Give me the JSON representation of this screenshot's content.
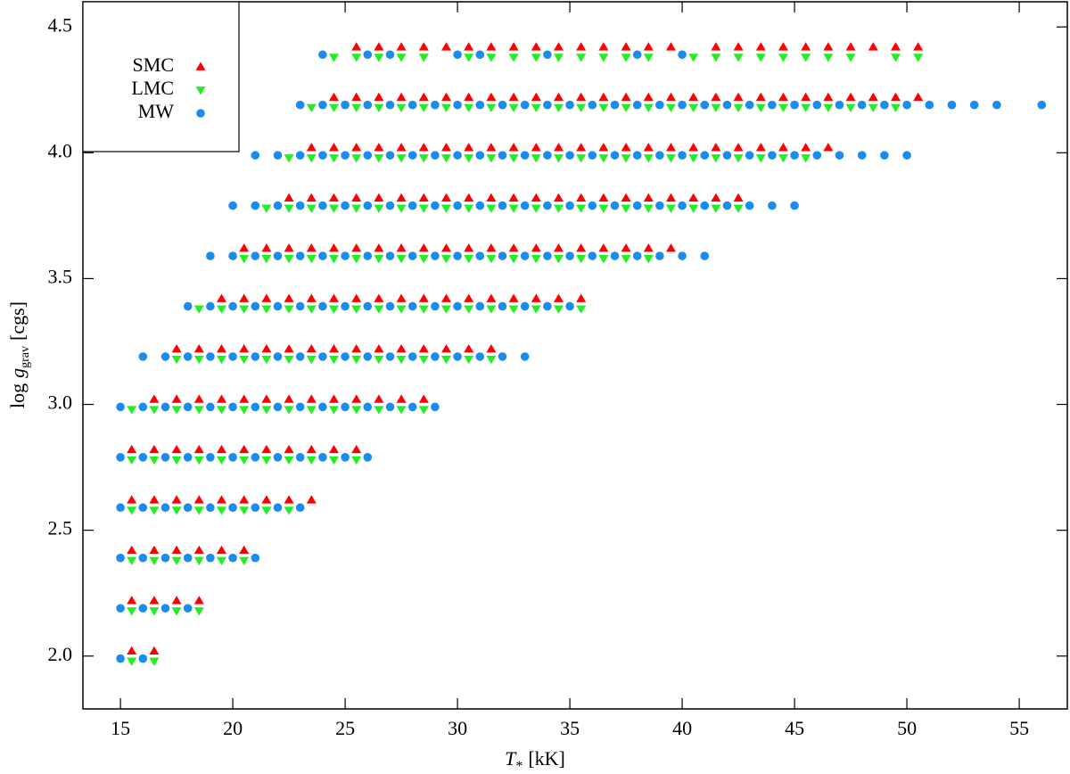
{
  "chart_data": {
    "type": "scatter",
    "x_label": {
      "symbol": "T",
      "subscript": "*",
      "unit": "[kK]"
    },
    "y_label": {
      "prefix": "log",
      "symbol": "g",
      "subscript": "grav",
      "unit": "[cgs]"
    },
    "xlim": [
      13.33,
      57.14
    ],
    "ylim": [
      1.79,
      4.6
    ],
    "xticks": [
      15,
      20,
      25,
      30,
      35,
      40,
      45,
      50,
      55
    ],
    "yticks": [
      {
        "value": 2,
        "label": "2.0"
      },
      2.5,
      {
        "value": 3,
        "label": "3.0"
      },
      3.5,
      {
        "value": 4,
        "label": "4.0"
      },
      4.5
    ],
    "legend": "upper left",
    "series": [
      {
        "name": "SMC",
        "color": "#ff0000",
        "marker": "triangle-up",
        "x": [
          15.5,
          16.5,
          15.5,
          16.5,
          17.5,
          18.5,
          15.5,
          16.5,
          17.5,
          18.5,
          19.5,
          20.5,
          15.5,
          16.5,
          17.5,
          18.5,
          19.5,
          20.5,
          21.5,
          22.5,
          23.5,
          15.5,
          16.5,
          17.5,
          18.5,
          19.5,
          20.5,
          21.5,
          22.5,
          23.5,
          24.5,
          25.5,
          16.5,
          17.5,
          18.5,
          19.5,
          20.5,
          21.5,
          22.5,
          23.5,
          24.5,
          25.5,
          26.5,
          27.5,
          28.5,
          17.5,
          18.5,
          19.5,
          20.5,
          21.5,
          22.5,
          23.5,
          24.5,
          25.5,
          26.5,
          27.5,
          28.5,
          29.5,
          30.5,
          31.5,
          19.5,
          20.5,
          21.5,
          22.5,
          23.5,
          24.5,
          25.5,
          26.5,
          27.5,
          28.5,
          29.5,
          30.5,
          31.5,
          32.5,
          33.5,
          34.5,
          35.5,
          20.5,
          21.5,
          22.5,
          23.5,
          24.5,
          25.5,
          26.5,
          27.5,
          28.5,
          29.5,
          30.5,
          31.5,
          32.5,
          33.5,
          34.5,
          35.5,
          36.5,
          37.5,
          38.5,
          39.5,
          22.5,
          23.5,
          24.5,
          25.5,
          26.5,
          27.5,
          28.5,
          29.5,
          30.5,
          31.5,
          32.5,
          33.5,
          34.5,
          35.5,
          36.5,
          37.5,
          38.5,
          39.5,
          40.5,
          41.5,
          42.5,
          23.5,
          24.5,
          25.5,
          26.5,
          27.5,
          28.5,
          29.5,
          30.5,
          31.5,
          32.5,
          33.5,
          34.5,
          35.5,
          36.5,
          37.5,
          38.5,
          39.5,
          40.5,
          41.5,
          42.5,
          43.5,
          44.5,
          45.5,
          46.5,
          24.5,
          25.5,
          26.5,
          27.5,
          28.5,
          29.5,
          30.5,
          31.5,
          32.5,
          33.5,
          34.5,
          35.5,
          36.5,
          37.5,
          38.5,
          39.5,
          40.5,
          41.5,
          42.5,
          43.5,
          44.5,
          45.5,
          46.5,
          47.5,
          48.5,
          49.5,
          50.5,
          25.5,
          26.5,
          27.5,
          28.5,
          29.5,
          30.5,
          31.5,
          32.5,
          33.5,
          34.5,
          35.5,
          36.5,
          37.5,
          38.5,
          39.5,
          41.5,
          42.5,
          43.5,
          44.5,
          45.5,
          46.5,
          47.5,
          48.5,
          49.5,
          50.5
        ],
        "values": [
          2.02,
          2.02,
          2.22,
          2.22,
          2.22,
          2.22,
          2.42,
          2.42,
          2.42,
          2.42,
          2.42,
          2.42,
          2.62,
          2.62,
          2.62,
          2.62,
          2.62,
          2.62,
          2.62,
          2.62,
          2.62,
          2.82,
          2.82,
          2.82,
          2.82,
          2.82,
          2.82,
          2.82,
          2.82,
          2.82,
          2.82,
          2.82,
          3.02,
          3.02,
          3.02,
          3.02,
          3.02,
          3.02,
          3.02,
          3.02,
          3.02,
          3.02,
          3.02,
          3.02,
          3.02,
          3.22,
          3.22,
          3.22,
          3.22,
          3.22,
          3.22,
          3.22,
          3.22,
          3.22,
          3.22,
          3.22,
          3.22,
          3.22,
          3.22,
          3.22,
          3.42,
          3.42,
          3.42,
          3.42,
          3.42,
          3.42,
          3.42,
          3.42,
          3.42,
          3.42,
          3.42,
          3.42,
          3.42,
          3.42,
          3.42,
          3.42,
          3.42,
          3.62,
          3.62,
          3.62,
          3.62,
          3.62,
          3.62,
          3.62,
          3.62,
          3.62,
          3.62,
          3.62,
          3.62,
          3.62,
          3.62,
          3.62,
          3.62,
          3.62,
          3.62,
          3.62,
          3.62,
          3.82,
          3.82,
          3.82,
          3.82,
          3.82,
          3.82,
          3.82,
          3.82,
          3.82,
          3.82,
          3.82,
          3.82,
          3.82,
          3.82,
          3.82,
          3.82,
          3.82,
          3.82,
          3.82,
          3.82,
          3.82,
          4.02,
          4.02,
          4.02,
          4.02,
          4.02,
          4.02,
          4.02,
          4.02,
          4.02,
          4.02,
          4.02,
          4.02,
          4.02,
          4.02,
          4.02,
          4.02,
          4.02,
          4.02,
          4.02,
          4.02,
          4.02,
          4.02,
          4.02,
          4.02,
          4.22,
          4.22,
          4.22,
          4.22,
          4.22,
          4.22,
          4.22,
          4.22,
          4.22,
          4.22,
          4.22,
          4.22,
          4.22,
          4.22,
          4.22,
          4.22,
          4.22,
          4.22,
          4.22,
          4.22,
          4.22,
          4.22,
          4.22,
          4.22,
          4.22,
          4.22,
          4.22,
          4.42,
          4.42,
          4.42,
          4.42,
          4.42,
          4.42,
          4.42,
          4.42,
          4.42,
          4.42,
          4.42,
          4.42,
          4.42,
          4.42,
          4.42,
          4.42,
          4.42,
          4.42,
          4.42,
          4.42,
          4.42,
          4.42,
          4.42,
          4.42,
          4.42
        ]
      },
      {
        "name": "LMC",
        "color": "#22ee22",
        "marker": "triangle-down",
        "x": [
          15.5,
          16.5,
          15.5,
          16.5,
          17.5,
          18.5,
          15.5,
          16.5,
          17.5,
          18.5,
          19.5,
          20.5,
          15.5,
          16.5,
          17.5,
          18.5,
          19.5,
          20.5,
          21.5,
          22.5,
          15.5,
          16.5,
          17.5,
          18.5,
          19.5,
          20.5,
          21.5,
          22.5,
          23.5,
          24.5,
          25.5,
          15.5,
          16.5,
          17.5,
          18.5,
          19.5,
          20.5,
          21.5,
          22.5,
          23.5,
          24.5,
          25.5,
          26.5,
          27.5,
          28.5,
          17.5,
          18.5,
          19.5,
          20.5,
          21.5,
          22.5,
          23.5,
          24.5,
          25.5,
          26.5,
          27.5,
          28.5,
          29.5,
          30.5,
          31.5,
          18.5,
          19.5,
          20.5,
          21.5,
          22.5,
          23.5,
          24.5,
          25.5,
          26.5,
          27.5,
          28.5,
          29.5,
          30.5,
          31.5,
          32.5,
          33.5,
          34.5,
          35.5,
          20.5,
          21.5,
          22.5,
          23.5,
          24.5,
          25.5,
          26.5,
          27.5,
          28.5,
          29.5,
          30.5,
          31.5,
          32.5,
          33.5,
          34.5,
          35.5,
          36.5,
          37.5,
          38.5,
          21.5,
          22.5,
          23.5,
          24.5,
          25.5,
          26.5,
          27.5,
          28.5,
          29.5,
          30.5,
          31.5,
          32.5,
          33.5,
          34.5,
          35.5,
          36.5,
          37.5,
          38.5,
          39.5,
          40.5,
          41.5,
          42.5,
          22.5,
          23.5,
          24.5,
          25.5,
          26.5,
          27.5,
          28.5,
          29.5,
          30.5,
          31.5,
          32.5,
          33.5,
          34.5,
          35.5,
          36.5,
          37.5,
          38.5,
          39.5,
          40.5,
          41.5,
          42.5,
          43.5,
          44.5,
          45.5,
          23.5,
          24.5,
          25.5,
          26.5,
          27.5,
          28.5,
          29.5,
          30.5,
          31.5,
          32.5,
          33.5,
          34.5,
          35.5,
          36.5,
          37.5,
          38.5,
          39.5,
          40.5,
          41.5,
          42.5,
          43.5,
          44.5,
          45.5,
          46.5,
          47.5,
          48.5,
          49.5,
          24.5,
          25.5,
          26.5,
          27.5,
          28.5,
          30.5,
          31.5,
          32.5,
          33.5,
          34.5,
          35.5,
          36.5,
          37.5,
          38.5,
          40.5,
          41.5,
          42.5,
          43.5,
          44.5,
          45.5,
          46.5,
          47.5,
          49.5,
          50.5
        ],
        "values": [
          1.98,
          1.98,
          2.18,
          2.18,
          2.18,
          2.18,
          2.38,
          2.38,
          2.38,
          2.38,
          2.38,
          2.38,
          2.58,
          2.58,
          2.58,
          2.58,
          2.58,
          2.58,
          2.58,
          2.58,
          2.78,
          2.78,
          2.78,
          2.78,
          2.78,
          2.78,
          2.78,
          2.78,
          2.78,
          2.78,
          2.78,
          2.98,
          2.98,
          2.98,
          2.98,
          2.98,
          2.98,
          2.98,
          2.98,
          2.98,
          2.98,
          2.98,
          2.98,
          2.98,
          2.98,
          3.18,
          3.18,
          3.18,
          3.18,
          3.18,
          3.18,
          3.18,
          3.18,
          3.18,
          3.18,
          3.18,
          3.18,
          3.18,
          3.18,
          3.18,
          3.38,
          3.38,
          3.38,
          3.38,
          3.38,
          3.38,
          3.38,
          3.38,
          3.38,
          3.38,
          3.38,
          3.38,
          3.38,
          3.38,
          3.38,
          3.38,
          3.38,
          3.38,
          3.58,
          3.58,
          3.58,
          3.58,
          3.58,
          3.58,
          3.58,
          3.58,
          3.58,
          3.58,
          3.58,
          3.58,
          3.58,
          3.58,
          3.58,
          3.58,
          3.58,
          3.58,
          3.58,
          3.78,
          3.78,
          3.78,
          3.78,
          3.78,
          3.78,
          3.78,
          3.78,
          3.78,
          3.78,
          3.78,
          3.78,
          3.78,
          3.78,
          3.78,
          3.78,
          3.78,
          3.78,
          3.78,
          3.78,
          3.78,
          3.78,
          3.98,
          3.98,
          3.98,
          3.98,
          3.98,
          3.98,
          3.98,
          3.98,
          3.98,
          3.98,
          3.98,
          3.98,
          3.98,
          3.98,
          3.98,
          3.98,
          3.98,
          3.98,
          3.98,
          3.98,
          3.98,
          3.98,
          3.98,
          3.98,
          4.18,
          4.18,
          4.18,
          4.18,
          4.18,
          4.18,
          4.18,
          4.18,
          4.18,
          4.18,
          4.18,
          4.18,
          4.18,
          4.18,
          4.18,
          4.18,
          4.18,
          4.18,
          4.18,
          4.18,
          4.18,
          4.18,
          4.18,
          4.18,
          4.18,
          4.18,
          4.18,
          4.38,
          4.38,
          4.38,
          4.38,
          4.38,
          4.38,
          4.38,
          4.38,
          4.38,
          4.38,
          4.38,
          4.38,
          4.38,
          4.38,
          4.38,
          4.38,
          4.38,
          4.38,
          4.38,
          4.38,
          4.38,
          4.38,
          4.38,
          4.38
        ]
      },
      {
        "name": "MW",
        "color": "#1a8cf0",
        "marker": "circle",
        "x": [
          15,
          16,
          15,
          16,
          17,
          18,
          15,
          16,
          17,
          18,
          19,
          20,
          21,
          15,
          16,
          17,
          18,
          19,
          20,
          21,
          22,
          23,
          15,
          16,
          17,
          18,
          19,
          20,
          21,
          22,
          23,
          24,
          25,
          26,
          15,
          16,
          17,
          18,
          19,
          20,
          21,
          22,
          23,
          24,
          25,
          26,
          27,
          28,
          29,
          16,
          17,
          18,
          19,
          20,
          21,
          22,
          23,
          24,
          25,
          26,
          27,
          28,
          29,
          30,
          31,
          32,
          33,
          18,
          19,
          20,
          21,
          22,
          23,
          24,
          25,
          26,
          27,
          28,
          29,
          30,
          31,
          32,
          33,
          34,
          35,
          19,
          20,
          21,
          22,
          23,
          24,
          25,
          26,
          27,
          28,
          29,
          30,
          31,
          32,
          33,
          34,
          35,
          36,
          37,
          38,
          39,
          40,
          41,
          20,
          21,
          22,
          23,
          24,
          25,
          26,
          27,
          28,
          29,
          30,
          31,
          32,
          33,
          34,
          35,
          36,
          37,
          38,
          39,
          40,
          41,
          42,
          43,
          44,
          45,
          21,
          22,
          23,
          24,
          25,
          26,
          27,
          28,
          29,
          30,
          31,
          32,
          33,
          34,
          35,
          36,
          37,
          38,
          39,
          40,
          41,
          42,
          43,
          44,
          45,
          46,
          47,
          48,
          49,
          50,
          23,
          24,
          25,
          26,
          27,
          28,
          29,
          30,
          31,
          32,
          33,
          34,
          35,
          36,
          37,
          38,
          39,
          40,
          41,
          42,
          43,
          44,
          45,
          46,
          47,
          48,
          49,
          50,
          51,
          52,
          53,
          54,
          56,
          24,
          26,
          27,
          30,
          31,
          34,
          38,
          40
        ],
        "values": [
          1.99,
          1.99,
          2.19,
          2.19,
          2.19,
          2.19,
          2.39,
          2.39,
          2.39,
          2.39,
          2.39,
          2.39,
          2.39,
          2.59,
          2.59,
          2.59,
          2.59,
          2.59,
          2.59,
          2.59,
          2.59,
          2.59,
          2.79,
          2.79,
          2.79,
          2.79,
          2.79,
          2.79,
          2.79,
          2.79,
          2.79,
          2.79,
          2.79,
          2.79,
          2.99,
          2.99,
          2.99,
          2.99,
          2.99,
          2.99,
          2.99,
          2.99,
          2.99,
          2.99,
          2.99,
          2.99,
          2.99,
          2.99,
          2.99,
          3.19,
          3.19,
          3.19,
          3.19,
          3.19,
          3.19,
          3.19,
          3.19,
          3.19,
          3.19,
          3.19,
          3.19,
          3.19,
          3.19,
          3.19,
          3.19,
          3.19,
          3.19,
          3.39,
          3.39,
          3.39,
          3.39,
          3.39,
          3.39,
          3.39,
          3.39,
          3.39,
          3.39,
          3.39,
          3.39,
          3.39,
          3.39,
          3.39,
          3.39,
          3.39,
          3.39,
          3.59,
          3.59,
          3.59,
          3.59,
          3.59,
          3.59,
          3.59,
          3.59,
          3.59,
          3.59,
          3.59,
          3.59,
          3.59,
          3.59,
          3.59,
          3.59,
          3.59,
          3.59,
          3.59,
          3.59,
          3.59,
          3.59,
          3.59,
          3.79,
          3.79,
          3.79,
          3.79,
          3.79,
          3.79,
          3.79,
          3.79,
          3.79,
          3.79,
          3.79,
          3.79,
          3.79,
          3.79,
          3.79,
          3.79,
          3.79,
          3.79,
          3.79,
          3.79,
          3.79,
          3.79,
          3.79,
          3.79,
          3.79,
          3.79,
          3.99,
          3.99,
          3.99,
          3.99,
          3.99,
          3.99,
          3.99,
          3.99,
          3.99,
          3.99,
          3.99,
          3.99,
          3.99,
          3.99,
          3.99,
          3.99,
          3.99,
          3.99,
          3.99,
          3.99,
          3.99,
          3.99,
          3.99,
          3.99,
          3.99,
          3.99,
          3.99,
          3.99,
          3.99,
          3.99,
          4.19,
          4.19,
          4.19,
          4.19,
          4.19,
          4.19,
          4.19,
          4.19,
          4.19,
          4.19,
          4.19,
          4.19,
          4.19,
          4.19,
          4.19,
          4.19,
          4.19,
          4.19,
          4.19,
          4.19,
          4.19,
          4.19,
          4.19,
          4.19,
          4.19,
          4.19,
          4.19,
          4.19,
          4.19,
          4.19,
          4.19,
          4.19,
          4.19,
          4.39,
          4.39,
          4.39,
          4.39,
          4.39,
          4.39,
          4.39,
          4.39
        ]
      }
    ]
  }
}
